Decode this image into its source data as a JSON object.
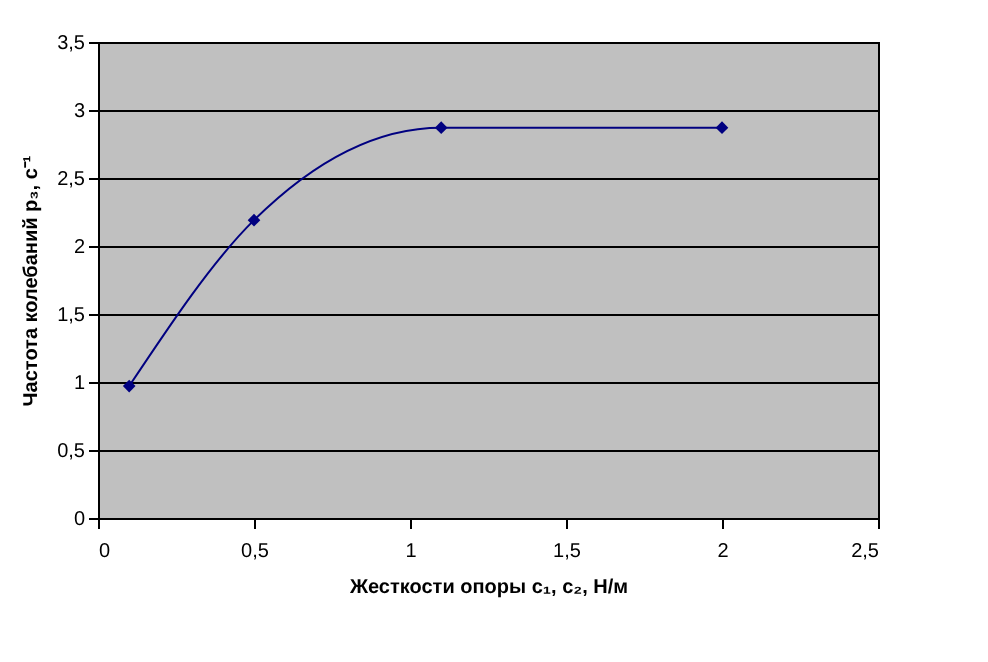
{
  "chart_data": {
    "type": "line",
    "xlabel": "Жесткости опоры c₁, c₂, Н/м",
    "ylabel": "Частота колебаний p₃, c⁻¹",
    "x": [
      0.1,
      0.5,
      1.1,
      2.0
    ],
    "series": [
      {
        "color": "#000080",
        "values": [
          0.97,
          2.19,
          2.87,
          2.87
        ]
      }
    ],
    "xlim": [
      0,
      2.5
    ],
    "xticks": [
      {
        "value": 0,
        "label": "0"
      },
      {
        "value": 0.5,
        "label": "0,5"
      },
      {
        "value": 1,
        "label": "1"
      },
      {
        "value": 1.5,
        "label": "1,5"
      },
      {
        "value": 2,
        "label": "2"
      },
      {
        "value": 2.5,
        "label": "2,5"
      }
    ],
    "ylim": [
      0,
      3.5
    ],
    "yticks": [
      {
        "value": 0,
        "label": "0"
      },
      {
        "value": 0.5,
        "label": "0,5"
      },
      {
        "value": 1,
        "label": "1"
      },
      {
        "value": 1.5,
        "label": "1,5"
      },
      {
        "value": 2,
        "label": "2"
      },
      {
        "value": 2.5,
        "label": "2,5"
      },
      {
        "value": 3,
        "label": "3"
      },
      {
        "value": 3.5,
        "label": "3,5"
      }
    ],
    "grid": "y",
    "marker": "diamond",
    "line_style": "solid"
  }
}
